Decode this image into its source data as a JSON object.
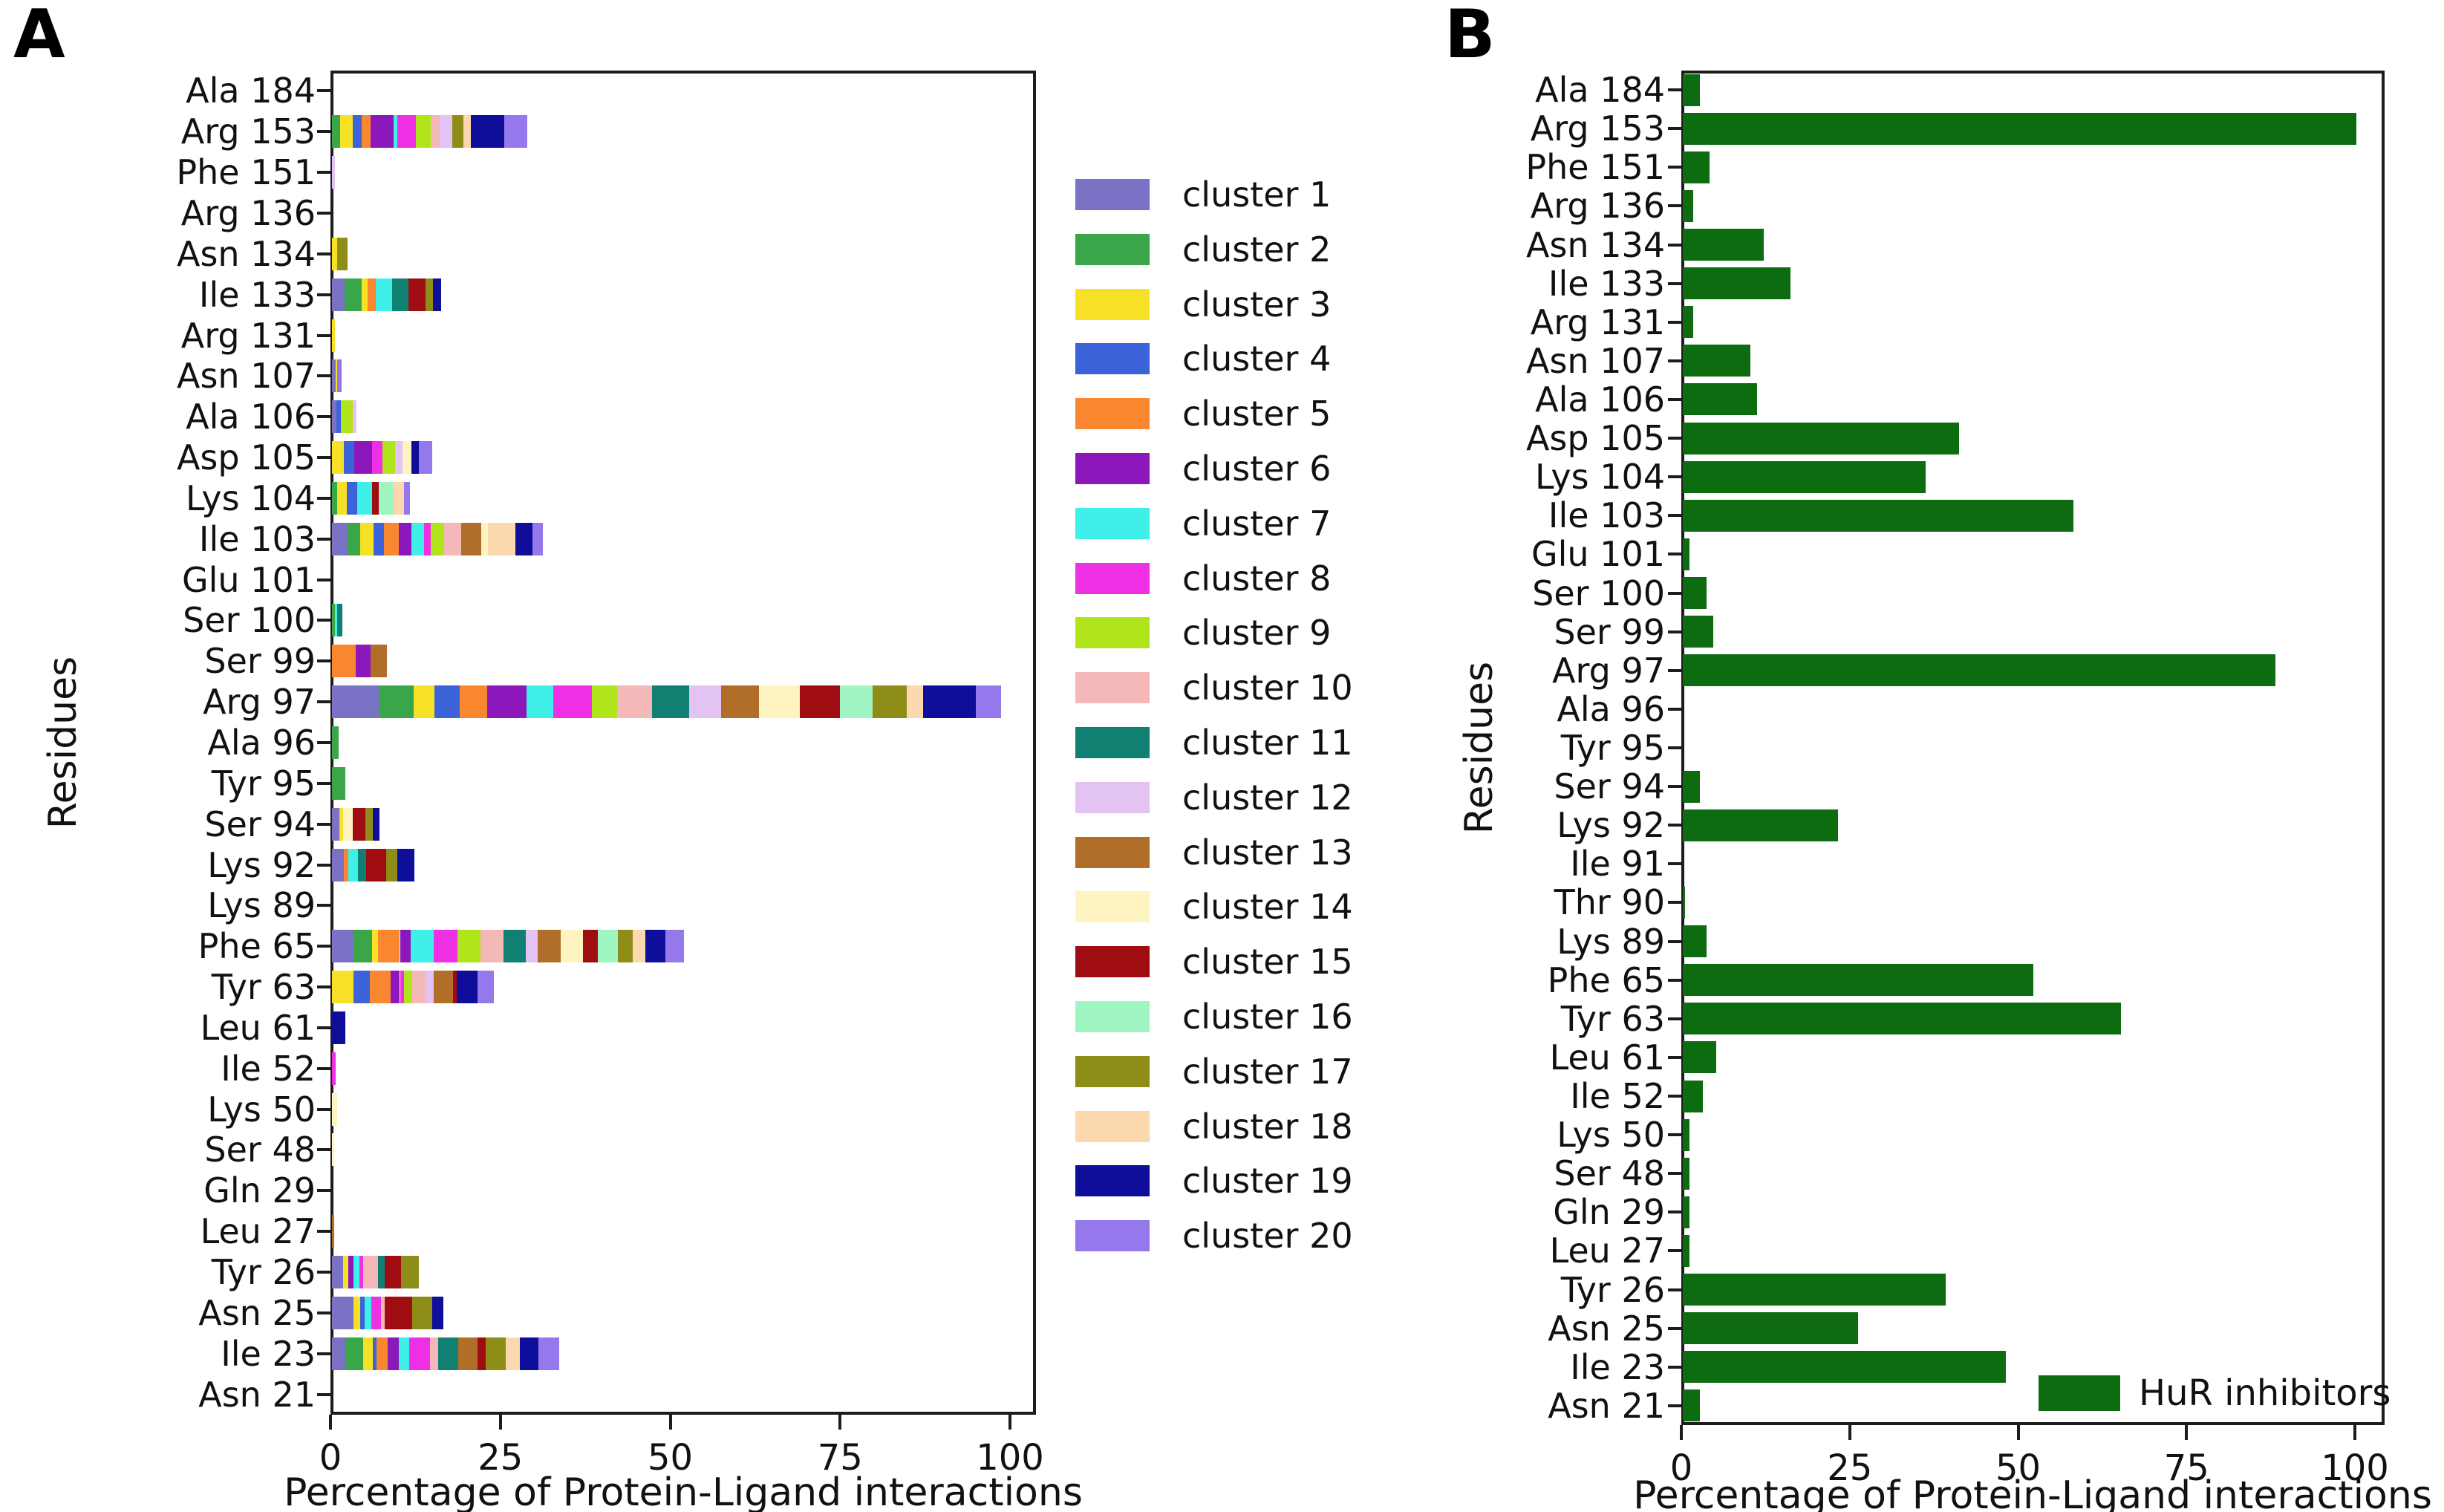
{
  "figure_title": "",
  "colors": {
    "spine": "#1c1c1c",
    "text": "#111111",
    "hur_green": "#0e6c10"
  },
  "chart_data": [
    {
      "id": "A",
      "panel_letter": "A",
      "type": "bar",
      "orientation": "horizontal",
      "stacked": true,
      "xlabel": "Percentage of Protein-Ligand interactions",
      "ylabel": "Residues",
      "xlim": [
        0,
        104
      ],
      "x_ticks": [
        0,
        25,
        50,
        75,
        100
      ],
      "grid": false,
      "legend_position": "right-of-axes",
      "legend": [
        {
          "label": "cluster 1",
          "color": "#7a73c5"
        },
        {
          "label": "cluster 2",
          "color": "#3aa64a"
        },
        {
          "label": "cluster 3",
          "color": "#f6e126"
        },
        {
          "label": "cluster 4",
          "color": "#3c63d9"
        },
        {
          "label": "cluster 5",
          "color": "#f88730"
        },
        {
          "label": "cluster 6",
          "color": "#8c17bb"
        },
        {
          "label": "cluster 7",
          "color": "#3ff0e9"
        },
        {
          "label": "cluster 8",
          "color": "#ee2fe3"
        },
        {
          "label": "cluster 9",
          "color": "#b0e51c"
        },
        {
          "label": "cluster 10",
          "color": "#f5b8b8"
        },
        {
          "label": "cluster 11",
          "color": "#108073"
        },
        {
          "label": "cluster 12",
          "color": "#e2c3f4"
        },
        {
          "label": "cluster 13",
          "color": "#b06e28"
        },
        {
          "label": "cluster 14",
          "color": "#fdf4c2"
        },
        {
          "label": "cluster 15",
          "color": "#9f0d12"
        },
        {
          "label": "cluster 16",
          "color": "#9ff6c2"
        },
        {
          "label": "cluster 17",
          "color": "#8e8d17"
        },
        {
          "label": "cluster 18",
          "color": "#fbd8ad"
        },
        {
          "label": "cluster 19",
          "color": "#0e0e9b"
        },
        {
          "label": "cluster 20",
          "color": "#9579ec"
        }
      ],
      "rows_note": "segments are [cluster_number, percent] in stacking order; values estimated from pixels",
      "rows": [
        {
          "label": "Ala 184",
          "segments": []
        },
        {
          "label": "Arg 153",
          "segments": [
            [
              2,
              1.2
            ],
            [
              3,
              1.9
            ],
            [
              4,
              1.3
            ],
            [
              5,
              1.3
            ],
            [
              6,
              3.4
            ],
            [
              7,
              0.5
            ],
            [
              8,
              2.7
            ],
            [
              9,
              2.2
            ],
            [
              10,
              1.4
            ],
            [
              12,
              1.8
            ],
            [
              17,
              1.6
            ],
            [
              18,
              1.1
            ],
            [
              19,
              5.0
            ],
            [
              20,
              3.3
            ]
          ]
        },
        {
          "label": "Phe 151",
          "segments": [
            [
              12,
              0.4
            ]
          ]
        },
        {
          "label": "Arg 136",
          "segments": []
        },
        {
          "label": "Asn 134",
          "segments": [
            [
              3,
              0.8
            ],
            [
              17,
              1.5
            ]
          ]
        },
        {
          "label": "Ile 133",
          "segments": [
            [
              1,
              1.9
            ],
            [
              2,
              2.5
            ],
            [
              3,
              0.9
            ],
            [
              5,
              1.2
            ],
            [
              7,
              2.4
            ],
            [
              11,
              2.4
            ],
            [
              15,
              2.5
            ],
            [
              17,
              1.1
            ],
            [
              19,
              1.2
            ]
          ]
        },
        {
          "label": "Arg 131",
          "segments": [
            [
              3,
              0.4
            ]
          ]
        },
        {
          "label": "Asn 107",
          "segments": [
            [
              1,
              0.5
            ],
            [
              3,
              0.3
            ],
            [
              20,
              0.6
            ]
          ]
        },
        {
          "label": "Ala 106",
          "segments": [
            [
              1,
              0.7
            ],
            [
              4,
              0.6
            ],
            [
              9,
              1.8
            ],
            [
              12,
              0.5
            ]
          ]
        },
        {
          "label": "Asp 105",
          "segments": [
            [
              3,
              1.8
            ],
            [
              4,
              1.5
            ],
            [
              6,
              2.6
            ],
            [
              8,
              1.5
            ],
            [
              9,
              1.9
            ],
            [
              12,
              1.1
            ],
            [
              14,
              1.3
            ],
            [
              19,
              1.1
            ],
            [
              20,
              2.0
            ]
          ]
        },
        {
          "label": "Lys 104",
          "segments": [
            [
              2,
              0.8
            ],
            [
              3,
              1.4
            ],
            [
              4,
              1.5
            ],
            [
              7,
              2.2
            ],
            [
              15,
              1.0
            ],
            [
              16,
              2.2
            ],
            [
              18,
              1.5
            ],
            [
              20,
              0.9
            ]
          ]
        },
        {
          "label": "Ile 103",
          "segments": [
            [
              1,
              2.3
            ],
            [
              2,
              1.9
            ],
            [
              3,
              1.9
            ],
            [
              4,
              1.5
            ],
            [
              5,
              2.2
            ],
            [
              6,
              1.9
            ],
            [
              7,
              1.8
            ],
            [
              8,
              1.0
            ],
            [
              9,
              2.0
            ],
            [
              10,
              2.5
            ],
            [
              13,
              3.0
            ],
            [
              14,
              1.0
            ],
            [
              18,
              4.0
            ],
            [
              19,
              2.5
            ],
            [
              20,
              1.5
            ]
          ]
        },
        {
          "label": "Glu 101",
          "segments": []
        },
        {
          "label": "Ser 100",
          "segments": [
            [
              2,
              0.4
            ],
            [
              7,
              0.4
            ],
            [
              11,
              0.7
            ]
          ]
        },
        {
          "label": "Ser 99",
          "segments": [
            [
              5,
              3.5
            ],
            [
              6,
              2.2
            ],
            [
              13,
              2.4
            ]
          ]
        },
        {
          "label": "Arg 97",
          "segments": [
            [
              1,
              6.9
            ],
            [
              2,
              5.1
            ],
            [
              3,
              3.1
            ],
            [
              4,
              3.7
            ],
            [
              5,
              4.0
            ],
            [
              6,
              5.8
            ],
            [
              7,
              4.0
            ],
            [
              8,
              5.7
            ],
            [
              9,
              3.7
            ],
            [
              10,
              5.1
            ],
            [
              11,
              5.5
            ],
            [
              12,
              4.7
            ],
            [
              13,
              5.5
            ],
            [
              14,
              6.0
            ],
            [
              15,
              6.0
            ],
            [
              16,
              4.8
            ],
            [
              17,
              5.0
            ],
            [
              18,
              2.4
            ],
            [
              19,
              7.8
            ],
            [
              20,
              3.7
            ]
          ]
        },
        {
          "label": "Ala 96",
          "segments": [
            [
              2,
              1.0
            ]
          ]
        },
        {
          "label": "Tyr 95",
          "segments": [
            [
              2,
              2.0
            ]
          ]
        },
        {
          "label": "Ser 94",
          "segments": [
            [
              1,
              1.1
            ],
            [
              3,
              0.5
            ],
            [
              14,
              1.5
            ],
            [
              15,
              1.8
            ],
            [
              17,
              1.1
            ],
            [
              19,
              1.0
            ]
          ]
        },
        {
          "label": "Lys 92",
          "segments": [
            [
              1,
              1.8
            ],
            [
              5,
              0.6
            ],
            [
              7,
              1.4
            ],
            [
              11,
              1.2
            ],
            [
              15,
              3.0
            ],
            [
              17,
              1.6
            ],
            [
              19,
              2.5
            ]
          ]
        },
        {
          "label": "Lys 89",
          "segments": []
        },
        {
          "label": "Phe 65",
          "segments": [
            [
              1,
              3.2
            ],
            [
              2,
              2.7
            ],
            [
              3,
              0.9
            ],
            [
              5,
              3.2
            ],
            [
              6,
              1.6
            ],
            [
              7,
              3.4
            ],
            [
              8,
              3.5
            ],
            [
              9,
              3.4
            ],
            [
              10,
              3.4
            ],
            [
              11,
              3.2
            ],
            [
              12,
              1.8
            ],
            [
              13,
              3.4
            ],
            [
              14,
              3.2
            ],
            [
              15,
              2.2
            ],
            [
              16,
              3.0
            ],
            [
              17,
              2.2
            ],
            [
              18,
              1.8
            ],
            [
              19,
              3.0
            ],
            [
              20,
              2.7
            ]
          ]
        },
        {
          "label": "Tyr 63",
          "segments": [
            [
              3,
              3.2
            ],
            [
              4,
              2.4
            ],
            [
              5,
              3.0
            ],
            [
              6,
              1.4
            ],
            [
              8,
              0.6
            ],
            [
              9,
              1.2
            ],
            [
              10,
              2.0
            ],
            [
              12,
              1.2
            ],
            [
              13,
              2.8
            ],
            [
              15,
              0.6
            ],
            [
              19,
              3.0
            ],
            [
              20,
              2.4
            ]
          ]
        },
        {
          "label": "Leu 61",
          "segments": [
            [
              19,
              2.0
            ]
          ]
        },
        {
          "label": "Ile 52",
          "segments": [
            [
              8,
              0.5
            ]
          ]
        },
        {
          "label": "Lys 50",
          "segments": [
            [
              14,
              0.8
            ]
          ]
        },
        {
          "label": "Ser 48",
          "segments": [
            [
              14,
              0.3
            ]
          ]
        },
        {
          "label": "Gln 29",
          "segments": []
        },
        {
          "label": "Leu 27",
          "segments": [
            [
              13,
              0.3
            ]
          ]
        },
        {
          "label": "Tyr 26",
          "segments": [
            [
              1,
              1.6
            ],
            [
              3,
              0.8
            ],
            [
              6,
              0.8
            ],
            [
              7,
              0.8
            ],
            [
              8,
              0.6
            ],
            [
              10,
              2.2
            ],
            [
              11,
              1.0
            ],
            [
              15,
              2.4
            ],
            [
              17,
              2.6
            ]
          ]
        },
        {
          "label": "Asn 25",
          "segments": [
            [
              1,
              3.2
            ],
            [
              3,
              1.0
            ],
            [
              4,
              0.6
            ],
            [
              7,
              1.0
            ],
            [
              8,
              1.4
            ],
            [
              10,
              0.6
            ],
            [
              15,
              4.0
            ],
            [
              17,
              3.0
            ],
            [
              19,
              1.6
            ]
          ]
        },
        {
          "label": "Ile 23",
          "segments": [
            [
              1,
              2.0
            ],
            [
              2,
              2.6
            ],
            [
              3,
              1.4
            ],
            [
              4,
              0.6
            ],
            [
              5,
              1.6
            ],
            [
              6,
              1.6
            ],
            [
              7,
              1.6
            ],
            [
              8,
              3.0
            ],
            [
              10,
              1.2
            ],
            [
              11,
              3.0
            ],
            [
              13,
              2.8
            ],
            [
              15,
              1.2
            ],
            [
              17,
              3.0
            ],
            [
              18,
              2.0
            ],
            [
              19,
              2.8
            ],
            [
              20,
              3.0
            ]
          ]
        },
        {
          "label": "Asn 21",
          "segments": []
        }
      ]
    },
    {
      "id": "B",
      "panel_letter": "B",
      "type": "bar",
      "orientation": "horizontal",
      "stacked": false,
      "xlabel": "Percentage of Protein-Ligand interactions",
      "ylabel": "Residues",
      "xlim": [
        0,
        104
      ],
      "x_ticks": [
        0,
        25,
        50,
        75,
        100
      ],
      "grid": false,
      "bar_color": "#0e6c10",
      "legend_position": "lower-right-inside",
      "legend": [
        {
          "label": "HuR inhibitors",
          "color": "#0e6c10"
        }
      ],
      "categories": [
        "Ala 184",
        "Arg 153",
        "Phe 151",
        "Arg 136",
        "Asn 134",
        "Ile 133",
        "Arg 131",
        "Asn 107",
        "Ala 106",
        "Asp 105",
        "Lys 104",
        "Ile 103",
        "Glu 101",
        "Ser 100",
        "Ser 99",
        "Arg 97",
        "Ala 96",
        "Tyr 95",
        "Ser 94",
        "Lys 92",
        "Ile 91",
        "Thr 90",
        "Lys 89",
        "Phe 65",
        "Tyr 63",
        "Leu 61",
        "Ile 52",
        "Lys 50",
        "Ser 48",
        "Gln 29",
        "Leu 27",
        "Tyr 26",
        "Asn 25",
        "Ile 23",
        "Asn 21"
      ],
      "values": [
        2.5,
        100,
        4,
        1.5,
        12,
        16,
        1.5,
        10,
        11,
        41,
        36,
        58,
        1,
        3.5,
        4.5,
        88,
        0,
        0,
        2.5,
        23,
        0,
        0.3,
        3.5,
        52,
        65,
        5,
        3,
        1,
        1,
        1,
        1,
        39,
        26,
        48,
        2.5
      ]
    }
  ]
}
